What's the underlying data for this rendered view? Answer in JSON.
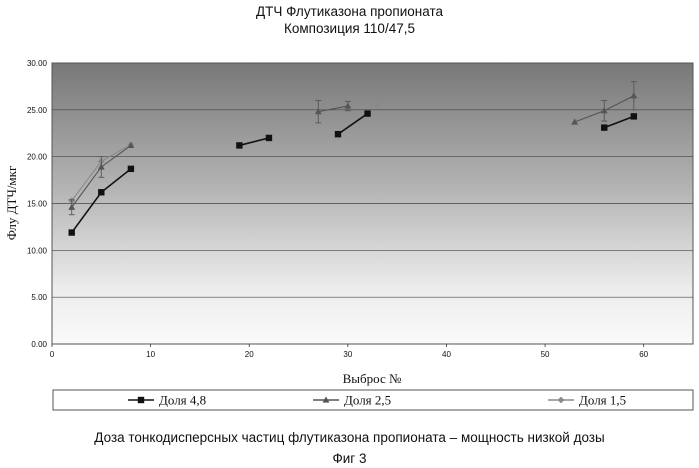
{
  "figure": {
    "caption": "Доза тонкодисперсных частиц флутиказона пропионата – мощность низкой дозы",
    "figure_label": "Фиг 3"
  },
  "chart_data": {
    "type": "line",
    "title": "ДТЧ Флутиказона пропионата",
    "subtitle": "Композиция 110/47,5",
    "xlabel": "Выброс №",
    "ylabel": "Флу ДТЧ/мкг",
    "xlim": [
      0,
      65
    ],
    "ylim": [
      0,
      30
    ],
    "x_ticks": [
      0,
      10,
      20,
      30,
      40,
      50,
      60
    ],
    "y_ticks": [
      "0.00",
      "5.00",
      "10.00",
      "15.00",
      "20.00",
      "25.00",
      "30.00"
    ],
    "grid": "horizontal",
    "legend_position": "bottom",
    "background": "gradient-gray",
    "series": [
      {
        "name": "Доля 4,8",
        "color": "#111111",
        "marker": "square",
        "segments": [
          [
            [
              2,
              11.9
            ],
            [
              5,
              16.2
            ],
            [
              8,
              18.7
            ]
          ],
          [
            [
              19,
              21.2
            ],
            [
              22,
              22.0
            ]
          ],
          [
            [
              29,
              22.4
            ],
            [
              32,
              24.6
            ]
          ],
          [
            [
              56,
              23.1
            ],
            [
              59,
              24.3
            ]
          ]
        ]
      },
      {
        "name": "Доля 2,5",
        "color": "#555555",
        "marker": "triangle",
        "segments": [
          [
            [
              2,
              14.6
            ],
            [
              5,
              18.9
            ],
            [
              8,
              21.2
            ]
          ],
          [
            [
              27,
              24.8
            ],
            [
              30,
              25.4
            ]
          ],
          [
            [
              53,
              23.7
            ],
            [
              56,
              24.9
            ],
            [
              59,
              26.5
            ]
          ]
        ],
        "errors": [
          [
            2,
            13.8,
            15.4
          ],
          [
            5,
            17.8,
            20.0
          ],
          [
            27,
            23.6,
            26.0
          ],
          [
            30,
            24.9,
            25.9
          ],
          [
            56,
            23.8,
            26.0
          ],
          [
            59,
            25.0,
            28.0
          ]
        ]
      },
      {
        "name": "Доля 1,5",
        "color": "#8a8a8a",
        "marker": "diamond",
        "segments": [
          [
            [
              2,
              15.3
            ],
            [
              5,
              19.5
            ],
            [
              8,
              21.3
            ]
          ],
          [
            [
              33,
              25.5
            ]
          ]
        ],
        "errors": [
          [
            33,
            25.3,
            25.8
          ]
        ]
      }
    ]
  }
}
